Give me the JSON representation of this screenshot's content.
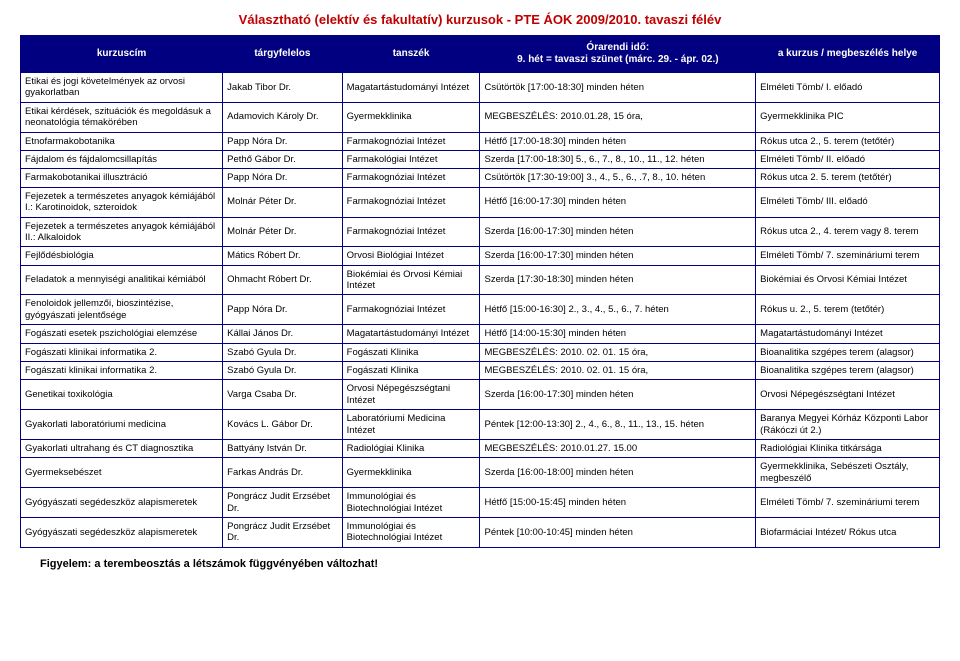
{
  "title": "Választható (elektív és fakultatív) kurzusok - PTE ÁOK 2009/2010. tavaszi félév",
  "headers": {
    "course": "kurzuscím",
    "person": "tárgyfelelos",
    "dept": "tanszék",
    "time": "Órarendi idő:\n9. hét = tavaszi szünet (márc. 29. - ápr. 02.)",
    "location": "a kurzus / megbeszélés helye"
  },
  "rows": [
    {
      "course": "Etikai és jogi követelmények az orvosi gyakorlatban",
      "person": "Jakab Tibor Dr.",
      "dept": "Magatartástudományi Intézet",
      "time": "Csütörtök [17:00-18:30] minden héten",
      "location": "Elméleti Tömb/ I. előadó"
    },
    {
      "course": "Etikai kérdések, szituációk és megoldásuk a neonatológia témakörében",
      "person": "Adamovich Károly Dr.",
      "dept": "Gyermekklinika",
      "time": "MEGBESZÉLÉS: 2010.01.28, 15 óra,",
      "location": "Gyermekklinika PIC"
    },
    {
      "course": "Etnofarmakobotanika",
      "person": "Papp Nóra Dr.",
      "dept": "Farmakognóziai Intézet",
      "time": "Hétfő [17:00-18:30] minden héten",
      "location": "Rókus utca 2., 5. terem (tetőtér)"
    },
    {
      "course": "Fájdalom és fájdalomcsillapítás",
      "person": "Pethő Gábor Dr.",
      "dept": "Farmakológiai Intézet",
      "time": "Szerda [17:00-18:30] 5., 6., 7., 8., 10., 11., 12. héten",
      "location": "Elméleti Tömb/ II. előadó"
    },
    {
      "course": "Farmakobotanikai illusztráció",
      "person": "Papp Nóra Dr.",
      "dept": "Farmakognóziai Intézet",
      "time": "Csütörtök [17:30-19:00] 3., 4., 5., 6., .7, 8., 10. héten",
      "location": "Rókus utca 2. 5. terem (tetőtér)"
    },
    {
      "course": "Fejezetek a természetes anyagok kémiájából I.: Karotinoidok, szteroidok",
      "person": "Molnár Péter Dr.",
      "dept": "Farmakognóziai Intézet",
      "time": "Hétfő [16:00-17:30] minden héten",
      "location": "Elméleti Tömb/ III. előadó"
    },
    {
      "course": "Fejezetek a természetes anyagok kémiájából II.: Alkaloidok",
      "person": "Molnár Péter Dr.",
      "dept": "Farmakognóziai Intézet",
      "time": "Szerda [16:00-17:30] minden héten",
      "location": "Rókus utca 2., 4. terem vagy 8. terem"
    },
    {
      "course": "Fejlődésbiológia",
      "person": "Mátics Róbert Dr.",
      "dept": "Orvosi Biológiai Intézet",
      "time": "Szerda [16:00-17:30] minden héten",
      "location": "Elméleti Tömb/ 7. szemináriumi terem"
    },
    {
      "course": "Feladatok a mennyiségi analitikai kémiából",
      "person": "Ohmacht Róbert Dr.",
      "dept": "Biokémiai és Orvosi Kémiai Intézet",
      "time": "Szerda [17:30-18:30] minden héten",
      "location": "Biokémiai és Orvosi Kémiai Intézet"
    },
    {
      "course": "Fenoloidok jellemzői, bioszintézise, gyógyászati jelentősége",
      "person": "Papp Nóra Dr.",
      "dept": "Farmakognóziai Intézet",
      "time": "Hétfő [15:00-16:30] 2., 3., 4., 5., 6., 7. héten",
      "location": "Rókus u. 2., 5. terem (tetőtér)"
    },
    {
      "course": "Fogászati esetek pszichológiai elemzése",
      "person": "Kállai János Dr.",
      "dept": "Magatartástudományi Intézet",
      "time": "Hétfő [14:00-15:30] minden héten",
      "location": "Magatartástudományi Intézet"
    },
    {
      "course": "Fogászati klinikai informatika 2.",
      "person": "Szabó Gyula Dr.",
      "dept": "Fogászati Klinika",
      "time": "MEGBESZÉLÉS:  2010. 02. 01. 15 óra,",
      "location": "Bioanalitika szgépes terem (alagsor)"
    },
    {
      "course": "Fogászati klinikai informatika 2.",
      "person": "Szabó Gyula Dr.",
      "dept": "Fogászati Klinika",
      "time": "MEGBESZÉLÉS:  2010. 02. 01. 15 óra,",
      "location": "Bioanalitika szgépes terem (alagsor)"
    },
    {
      "course": "Genetikai toxikológia",
      "person": "Varga Csaba Dr.",
      "dept": "Orvosi Népegészségtani Intézet",
      "time": "Szerda [16:00-17:30] minden héten",
      "location": "Orvosi Népegészségtani Intézet"
    },
    {
      "course": "Gyakorlati laboratóriumi medicina",
      "person": "Kovács L. Gábor Dr.",
      "dept": "Laboratóriumi Medicina Intézet",
      "time": "Péntek [12:00-13:30] 2., 4., 6., 8., 11., 13., 15. héten",
      "location": "Baranya Megyei Kórház Központi Labor (Rákóczi út 2.)"
    },
    {
      "course": "Gyakorlati ultrahang és CT diagnosztika",
      "person": "Battyány István Dr.",
      "dept": "Radiológiai Klinika",
      "time": "MEGBESZÉLÉS: 2010.01.27. 15.00",
      "location": "Radiológiai Klinika titkársága"
    },
    {
      "course": "Gyermeksebészet",
      "person": "Farkas András Dr.",
      "dept": "Gyermekklinika",
      "time": "Szerda [16:00-18:00] minden héten",
      "location": "Gyermekklinika, Sebészeti Osztály, megbeszélő"
    },
    {
      "course": "Gyógyászati segédeszköz alapismeretek",
      "person": "Pongrácz Judit Erzsébet Dr.",
      "dept": "Immunológiai és Biotechnológiai Intézet",
      "time": "Hétfő [15:00-15:45] minden héten",
      "location": "Elméleti Tömb/ 7. szemináriumi terem"
    },
    {
      "course": "Gyógyászati segédeszköz alapismeretek",
      "person": "Pongrácz Judit Erzsébet Dr.",
      "dept": "Immunológiai és Biotechnológiai Intézet",
      "time": "Péntek [10:00-10:45] minden héten",
      "location": "Biofarmáciai Intézet/ Rókus utca"
    }
  ],
  "footer": "Figyelem: a terembeosztás a létszámok függvényében változhat!",
  "colors": {
    "header_bg": "#000080",
    "header_fg": "#ffffff",
    "border": "#000080",
    "title": "#c00000",
    "background": "#ffffff"
  }
}
